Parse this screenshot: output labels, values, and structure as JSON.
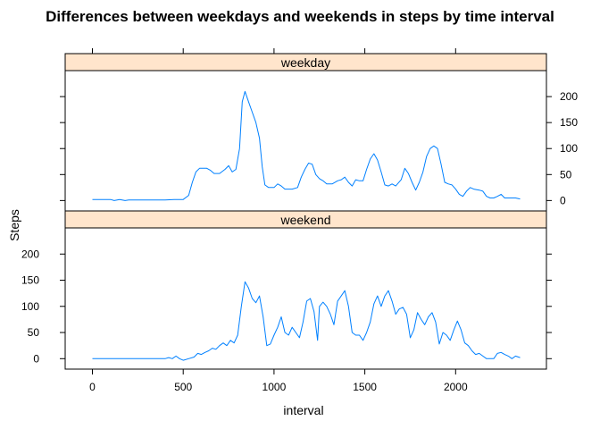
{
  "chart_data": {
    "type": "line",
    "title": "Differences between weekdays and weekends in steps by time interval",
    "xlabel": "interval",
    "ylabel": "Steps",
    "xlim": [
      -150,
      2500
    ],
    "ylim": [
      -20,
      250
    ],
    "x_ticks": [
      0,
      500,
      1000,
      1500,
      2000
    ],
    "y_ticks": [
      0,
      50,
      100,
      150,
      200
    ],
    "line_color": "#0080ff",
    "strip_color": "#ffe5cc",
    "grid": false,
    "layout": "two stacked panels, weekday on top, weekend below",
    "panels": [
      {
        "name": "weekday",
        "points": [
          [
            0,
            2
          ],
          [
            50,
            2
          ],
          [
            100,
            2
          ],
          [
            120,
            0
          ],
          [
            150,
            2
          ],
          [
            180,
            0
          ],
          [
            200,
            1
          ],
          [
            250,
            1
          ],
          [
            300,
            1
          ],
          [
            350,
            1
          ],
          [
            400,
            1
          ],
          [
            450,
            2
          ],
          [
            500,
            2
          ],
          [
            530,
            10
          ],
          [
            550,
            35
          ],
          [
            570,
            55
          ],
          [
            590,
            62
          ],
          [
            630,
            62
          ],
          [
            650,
            58
          ],
          [
            670,
            52
          ],
          [
            700,
            52
          ],
          [
            730,
            60
          ],
          [
            750,
            67
          ],
          [
            770,
            55
          ],
          [
            790,
            60
          ],
          [
            810,
            100
          ],
          [
            825,
            190
          ],
          [
            840,
            210
          ],
          [
            860,
            190
          ],
          [
            880,
            170
          ],
          [
            900,
            150
          ],
          [
            920,
            120
          ],
          [
            935,
            65
          ],
          [
            950,
            30
          ],
          [
            970,
            25
          ],
          [
            1000,
            25
          ],
          [
            1020,
            32
          ],
          [
            1040,
            28
          ],
          [
            1060,
            22
          ],
          [
            1100,
            22
          ],
          [
            1130,
            25
          ],
          [
            1150,
            45
          ],
          [
            1170,
            60
          ],
          [
            1190,
            72
          ],
          [
            1210,
            70
          ],
          [
            1230,
            50
          ],
          [
            1250,
            42
          ],
          [
            1270,
            38
          ],
          [
            1290,
            32
          ],
          [
            1320,
            32
          ],
          [
            1350,
            38
          ],
          [
            1370,
            40
          ],
          [
            1390,
            45
          ],
          [
            1410,
            35
          ],
          [
            1430,
            28
          ],
          [
            1450,
            40
          ],
          [
            1470,
            38
          ],
          [
            1490,
            38
          ],
          [
            1510,
            60
          ],
          [
            1530,
            80
          ],
          [
            1550,
            90
          ],
          [
            1570,
            78
          ],
          [
            1590,
            55
          ],
          [
            1610,
            30
          ],
          [
            1630,
            28
          ],
          [
            1650,
            32
          ],
          [
            1670,
            28
          ],
          [
            1700,
            40
          ],
          [
            1720,
            62
          ],
          [
            1740,
            52
          ],
          [
            1760,
            35
          ],
          [
            1780,
            20
          ],
          [
            1800,
            35
          ],
          [
            1820,
            55
          ],
          [
            1840,
            85
          ],
          [
            1860,
            100
          ],
          [
            1880,
            105
          ],
          [
            1900,
            100
          ],
          [
            1920,
            70
          ],
          [
            1940,
            35
          ],
          [
            1960,
            32
          ],
          [
            1980,
            30
          ],
          [
            2000,
            22
          ],
          [
            2020,
            12
          ],
          [
            2040,
            8
          ],
          [
            2060,
            18
          ],
          [
            2080,
            25
          ],
          [
            2100,
            22
          ],
          [
            2130,
            20
          ],
          [
            2150,
            18
          ],
          [
            2170,
            8
          ],
          [
            2190,
            5
          ],
          [
            2210,
            5
          ],
          [
            2230,
            8
          ],
          [
            2250,
            12
          ],
          [
            2270,
            5
          ],
          [
            2290,
            5
          ],
          [
            2310,
            5
          ],
          [
            2330,
            5
          ],
          [
            2355,
            3
          ]
        ]
      },
      {
        "name": "weekend",
        "points": [
          [
            0,
            0
          ],
          [
            100,
            0
          ],
          [
            200,
            0
          ],
          [
            300,
            0
          ],
          [
            350,
            0
          ],
          [
            400,
            0
          ],
          [
            420,
            2
          ],
          [
            440,
            0
          ],
          [
            460,
            5
          ],
          [
            480,
            0
          ],
          [
            500,
            -3
          ],
          [
            530,
            0
          ],
          [
            560,
            3
          ],
          [
            580,
            10
          ],
          [
            600,
            8
          ],
          [
            620,
            12
          ],
          [
            640,
            15
          ],
          [
            660,
            20
          ],
          [
            680,
            18
          ],
          [
            700,
            25
          ],
          [
            720,
            30
          ],
          [
            740,
            25
          ],
          [
            760,
            35
          ],
          [
            780,
            30
          ],
          [
            800,
            45
          ],
          [
            820,
            100
          ],
          [
            840,
            147
          ],
          [
            860,
            135
          ],
          [
            880,
            115
          ],
          [
            900,
            107
          ],
          [
            920,
            120
          ],
          [
            940,
            80
          ],
          [
            960,
            25
          ],
          [
            980,
            28
          ],
          [
            1000,
            45
          ],
          [
            1020,
            60
          ],
          [
            1040,
            80
          ],
          [
            1060,
            50
          ],
          [
            1080,
            45
          ],
          [
            1100,
            60
          ],
          [
            1120,
            50
          ],
          [
            1140,
            40
          ],
          [
            1160,
            70
          ],
          [
            1180,
            110
          ],
          [
            1200,
            115
          ],
          [
            1220,
            90
          ],
          [
            1240,
            35
          ],
          [
            1250,
            100
          ],
          [
            1270,
            108
          ],
          [
            1290,
            100
          ],
          [
            1310,
            85
          ],
          [
            1330,
            65
          ],
          [
            1350,
            110
          ],
          [
            1370,
            120
          ],
          [
            1390,
            130
          ],
          [
            1410,
            100
          ],
          [
            1430,
            50
          ],
          [
            1450,
            45
          ],
          [
            1470,
            45
          ],
          [
            1490,
            35
          ],
          [
            1510,
            50
          ],
          [
            1530,
            70
          ],
          [
            1550,
            105
          ],
          [
            1570,
            120
          ],
          [
            1590,
            100
          ],
          [
            1610,
            120
          ],
          [
            1630,
            130
          ],
          [
            1650,
            110
          ],
          [
            1670,
            85
          ],
          [
            1690,
            95
          ],
          [
            1710,
            98
          ],
          [
            1730,
            85
          ],
          [
            1750,
            40
          ],
          [
            1770,
            55
          ],
          [
            1790,
            88
          ],
          [
            1810,
            75
          ],
          [
            1830,
            65
          ],
          [
            1850,
            80
          ],
          [
            1870,
            88
          ],
          [
            1890,
            70
          ],
          [
            1910,
            28
          ],
          [
            1930,
            50
          ],
          [
            1950,
            45
          ],
          [
            1970,
            35
          ],
          [
            1990,
            55
          ],
          [
            2010,
            72
          ],
          [
            2030,
            55
          ],
          [
            2050,
            30
          ],
          [
            2070,
            25
          ],
          [
            2090,
            15
          ],
          [
            2110,
            8
          ],
          [
            2130,
            10
          ],
          [
            2150,
            5
          ],
          [
            2170,
            0
          ],
          [
            2190,
            0
          ],
          [
            2210,
            0
          ],
          [
            2230,
            10
          ],
          [
            2250,
            12
          ],
          [
            2270,
            8
          ],
          [
            2290,
            5
          ],
          [
            2310,
            0
          ],
          [
            2330,
            5
          ],
          [
            2355,
            2
          ]
        ]
      }
    ]
  }
}
